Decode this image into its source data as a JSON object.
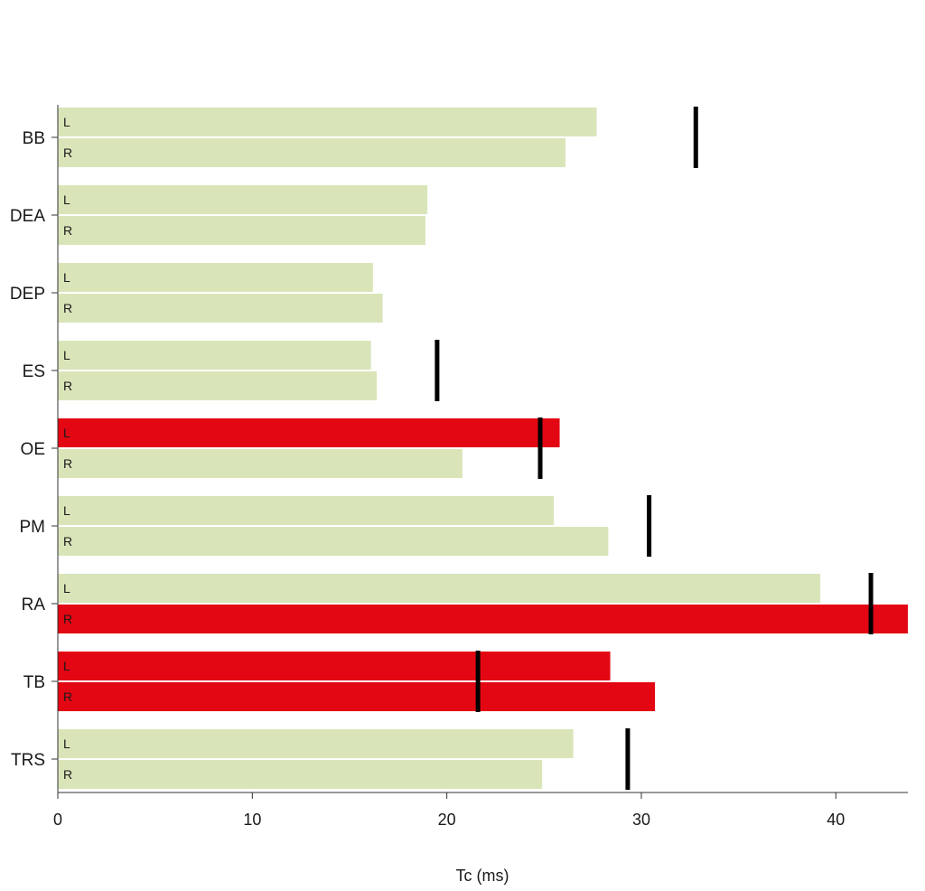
{
  "chart_data": {
    "type": "bar",
    "orientation": "horizontal",
    "xlabel": "Tc (ms)",
    "xlim": [
      0,
      43.7
    ],
    "xticks": [
      0,
      10,
      20,
      30,
      40
    ],
    "categories": [
      "BB",
      "DEA",
      "DEP",
      "ES",
      "OE",
      "PM",
      "RA",
      "TB",
      "TRS"
    ],
    "sides": [
      "L",
      "R"
    ],
    "series": [
      {
        "name": "L",
        "values": [
          27.7,
          19.0,
          16.2,
          16.1,
          25.8,
          25.5,
          39.2,
          28.4,
          26.5
        ]
      },
      {
        "name": "R",
        "values": [
          26.1,
          18.9,
          16.7,
          16.4,
          20.8,
          28.3,
          43.7,
          30.7,
          24.9
        ]
      }
    ],
    "highlighted": [
      [
        false,
        false
      ],
      [
        false,
        false
      ],
      [
        false,
        false
      ],
      [
        false,
        false
      ],
      [
        true,
        false
      ],
      [
        false,
        false
      ],
      [
        false,
        true
      ],
      [
        true,
        true
      ],
      [
        false,
        false
      ]
    ],
    "reference_values": [
      32.8,
      null,
      null,
      19.5,
      24.8,
      30.4,
      41.8,
      21.6,
      29.3
    ],
    "colors": {
      "normal": "#d9e5b9",
      "highlight": "#e30613",
      "reference": "#000000",
      "axis": "#333333"
    },
    "grid": false,
    "legend": "none"
  }
}
